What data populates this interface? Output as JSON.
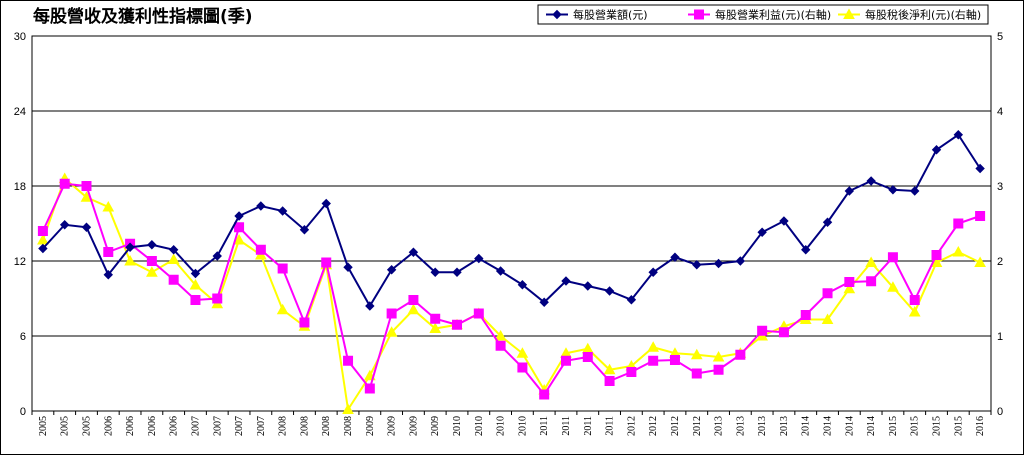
{
  "chart_data": {
    "type": "line",
    "title": "每股營收及獲利性指標圖(季)",
    "legend_position": "top-right",
    "left_axis": {
      "ylim": [
        0,
        30
      ],
      "ticks": [
        "0",
        "6",
        "12",
        "18",
        "24",
        "30"
      ]
    },
    "right_axis": {
      "ylim": [
        0,
        5
      ],
      "ticks": [
        "0",
        "1",
        "2",
        "3",
        "4",
        "5"
      ]
    },
    "grid": true,
    "x": [
      "2005",
      "2005",
      "2005",
      "2006",
      "2006",
      "2006",
      "2006",
      "2007",
      "2007",
      "2007",
      "2007",
      "2008",
      "2008",
      "2008",
      "2008",
      "2009",
      "2009",
      "2009",
      "2009",
      "2010",
      "2010",
      "2010",
      "2010",
      "2011",
      "2011",
      "2011",
      "2011",
      "2012",
      "2012",
      "2012",
      "2012",
      "2013",
      "2013",
      "2013",
      "2013",
      "2014",
      "2014",
      "2014",
      "2014",
      "2015",
      "2015",
      "2015",
      "2015",
      "2016"
    ],
    "series": [
      {
        "name": "每股營業額(元)",
        "axis": "left",
        "color": "#000080",
        "marker": "diamond",
        "values": [
          13.0,
          14.9,
          14.7,
          10.9,
          13.1,
          13.3,
          12.9,
          11.0,
          12.4,
          15.6,
          16.4,
          16.0,
          14.5,
          16.6,
          11.5,
          8.4,
          11.3,
          12.7,
          11.1,
          11.1,
          12.2,
          11.2,
          10.1,
          8.7,
          10.4,
          10.0,
          9.6,
          8.9,
          11.1,
          12.3,
          11.7,
          11.8,
          12.0,
          14.3,
          15.2,
          12.9,
          15.1,
          17.6,
          18.4,
          17.7,
          17.6,
          20.9,
          22.1,
          19.4
        ]
      },
      {
        "name": "每股營業利益(元)(右軸)",
        "axis": "right",
        "color": "#ff00ff",
        "marker": "square",
        "values": [
          2.4,
          3.03,
          3.0,
          2.12,
          2.23,
          2.0,
          1.75,
          1.48,
          1.5,
          2.45,
          2.15,
          1.9,
          1.18,
          1.98,
          0.67,
          0.3,
          1.3,
          1.48,
          1.23,
          1.15,
          1.3,
          0.87,
          0.58,
          0.22,
          0.67,
          0.72,
          0.4,
          0.52,
          0.67,
          0.68,
          0.5,
          0.55,
          0.75,
          1.07,
          1.05,
          1.28,
          1.57,
          1.72,
          1.73,
          2.05,
          1.48,
          2.08,
          2.5,
          2.6
        ]
      },
      {
        "name": "每股稅後淨利(元)(右軸)",
        "axis": "right",
        "color": "#ffff00",
        "marker": "triangle",
        "values": [
          2.28,
          3.1,
          2.85,
          2.72,
          2.0,
          1.85,
          2.02,
          1.68,
          1.43,
          2.28,
          2.08,
          1.35,
          1.13,
          1.95,
          0.02,
          0.47,
          1.05,
          1.35,
          1.1,
          1.15,
          1.3,
          1.0,
          0.77,
          0.28,
          0.77,
          0.83,
          0.55,
          0.6,
          0.85,
          0.77,
          0.75,
          0.72,
          0.77,
          1.0,
          1.13,
          1.22,
          1.22,
          1.63,
          1.98,
          1.65,
          1.32,
          1.98,
          2.12,
          1.98
        ]
      }
    ]
  }
}
